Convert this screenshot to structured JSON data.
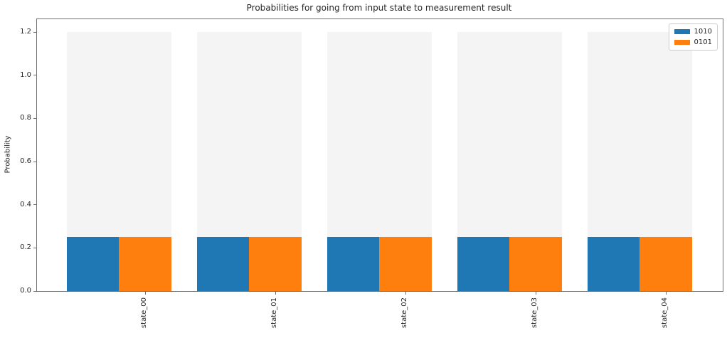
{
  "chart_data": {
    "type": "bar",
    "title": "Probabilities for going from input state to measurement result",
    "xlabel": "",
    "ylabel": "Probability",
    "categories": [
      "state_00",
      "state_01",
      "state_02",
      "state_03",
      "state_04"
    ],
    "series": [
      {
        "name": "1010",
        "color": "#1f77b4",
        "values": [
          0.25,
          0.25,
          0.25,
          0.25,
          0.25
        ]
      },
      {
        "name": "0101",
        "color": "#ff7f0e",
        "values": [
          0.25,
          0.25,
          0.25,
          0.25,
          0.25
        ]
      }
    ],
    "background_bars": {
      "color": "#f4f4f4",
      "value": 1.2
    },
    "ytick_labels": [
      "0.0",
      "0.2",
      "0.4",
      "0.6",
      "0.8",
      "1.0",
      "1.2"
    ],
    "ylim": [
      0,
      1.26
    ],
    "xtick_rotation": 90,
    "legend_position": "upper right",
    "grid": false,
    "spine_color": "#707070",
    "text_color": "#262626"
  }
}
